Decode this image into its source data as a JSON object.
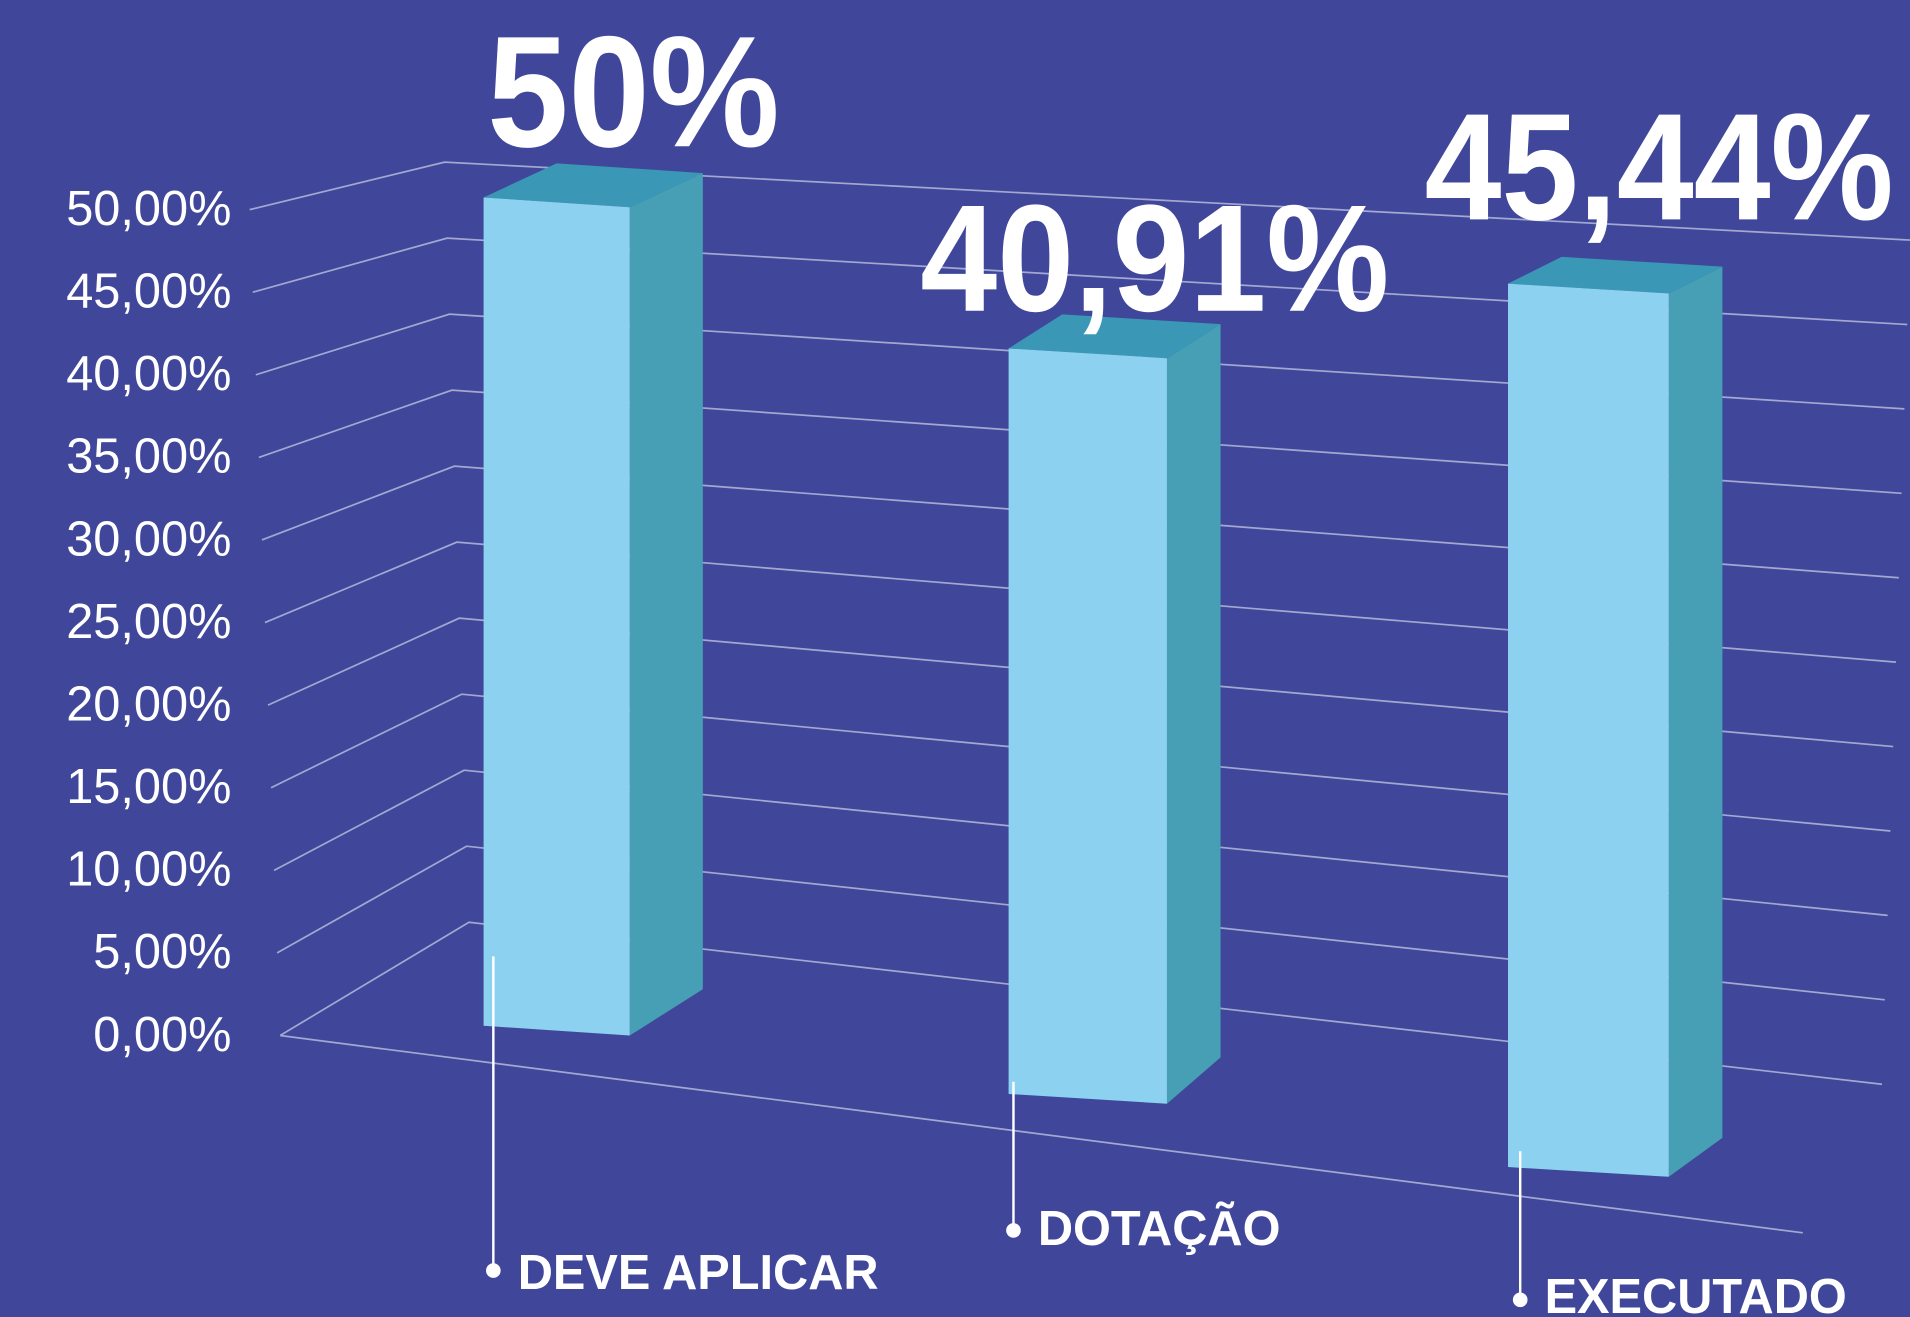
{
  "chart_data": {
    "type": "bar3d",
    "categories": [
      "DEVE APLICAR",
      "DOTAÇÃO",
      "EXECUTADO"
    ],
    "values": [
      50,
      40.91,
      45.44
    ],
    "value_labels": [
      "50%",
      "40,91%",
      "45,44%"
    ],
    "ylim": [
      0,
      50
    ],
    "yticks": [
      {
        "value": 0,
        "label": "0,00%"
      },
      {
        "value": 5,
        "label": "5,00%"
      },
      {
        "value": 10,
        "label": "10,00%"
      },
      {
        "value": 15,
        "label": "15,00%"
      },
      {
        "value": 20,
        "label": "20,00%"
      },
      {
        "value": 25,
        "label": "25,00%"
      },
      {
        "value": 30,
        "label": "30,00%"
      },
      {
        "value": 35,
        "label": "35,00%"
      },
      {
        "value": 40,
        "label": "40,00%"
      },
      {
        "value": 45,
        "label": "45,00%"
      },
      {
        "value": 50,
        "label": "50,00%"
      }
    ],
    "grid": true,
    "colors": {
      "front": "#8cd1f0",
      "side": "#469fb5",
      "top": "#3a98b6"
    }
  }
}
